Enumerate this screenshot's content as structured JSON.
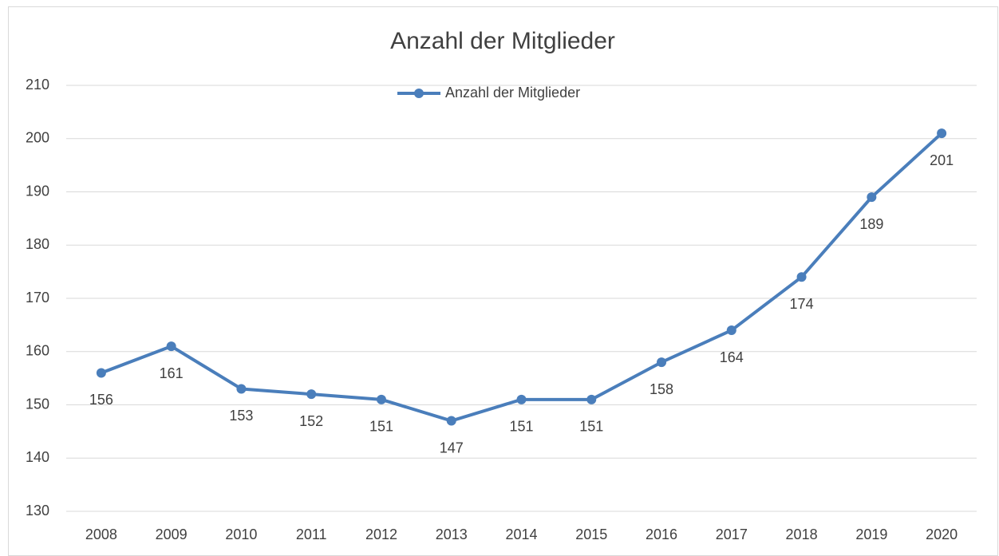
{
  "chart_data": {
    "type": "line",
    "title": "Anzahl der Mitglieder",
    "categories": [
      "2008",
      "2009",
      "2010",
      "2011",
      "2012",
      "2013",
      "2014",
      "2015",
      "2016",
      "2017",
      "2018",
      "2019",
      "2020"
    ],
    "series": [
      {
        "name": "Anzahl der Mitglieder",
        "color": "#4a7ebb",
        "values": [
          156,
          161,
          153,
          152,
          151,
          147,
          151,
          151,
          158,
          164,
          174,
          189,
          201
        ]
      }
    ],
    "ylim": [
      130,
      210
    ],
    "yticks": [
      130,
      140,
      150,
      160,
      170,
      180,
      190,
      200,
      210
    ],
    "grid": true,
    "legend": "top",
    "data_labels": true
  }
}
